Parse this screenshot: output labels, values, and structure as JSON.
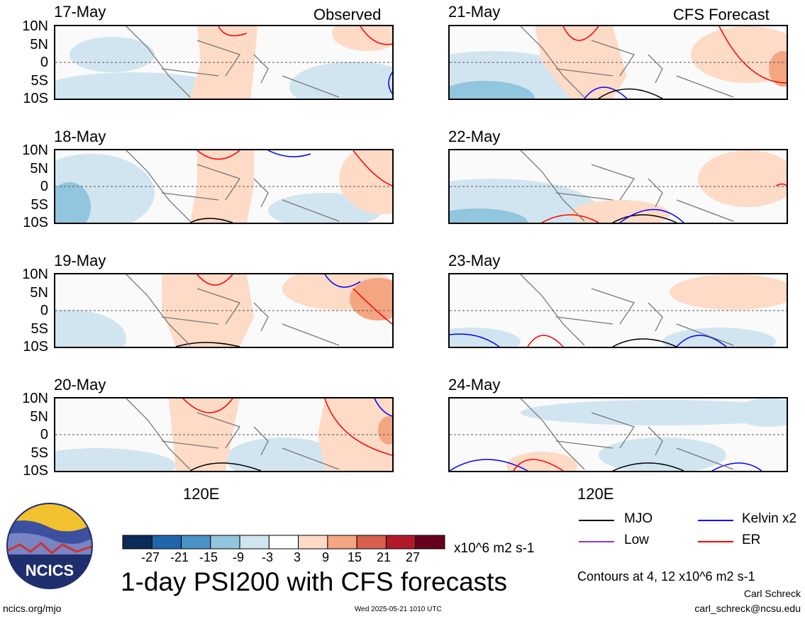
{
  "header": {
    "left_tag": "Observed",
    "right_tag": "CFS Forecast"
  },
  "lat_ticks": [
    "10N",
    "5N",
    "0",
    "5S",
    "10S"
  ],
  "lon_tick": "120E",
  "chart_data": {
    "type": "heatmap",
    "title": "1-day PSI200 with CFS forecasts",
    "variable": "PSI200",
    "units": "x10^6 m2 s-1",
    "lat_range": [
      "10S",
      "10N"
    ],
    "panels": [
      {
        "date": "17-May",
        "kind": "Observed"
      },
      {
        "date": "18-May",
        "kind": "Observed"
      },
      {
        "date": "19-May",
        "kind": "Observed"
      },
      {
        "date": "20-May",
        "kind": "Observed"
      },
      {
        "date": "21-May",
        "kind": "CFS Forecast"
      },
      {
        "date": "22-May",
        "kind": "CFS Forecast"
      },
      {
        "date": "23-May",
        "kind": "CFS Forecast"
      },
      {
        "date": "24-May",
        "kind": "CFS Forecast"
      }
    ],
    "colorbar": {
      "labels": [
        "-27",
        "-21",
        "-15",
        "-9",
        "-3",
        "3",
        "9",
        "15",
        "21",
        "27"
      ],
      "colors": [
        "#0b2c57",
        "#2166ac",
        "#4a93c6",
        "#92c5de",
        "#d1e5f0",
        "#ffffff",
        "#fddbc7",
        "#f4a582",
        "#d6604d",
        "#b2182b",
        "#67001f"
      ]
    },
    "legend": [
      {
        "label": "MJO",
        "color": "#000000"
      },
      {
        "label": "Kelvin x2",
        "color": "#0000ff"
      },
      {
        "label": "Low",
        "color": "#9933cc"
      },
      {
        "label": "ER",
        "color": "#ff0000"
      }
    ],
    "contour_note": "Contours at 4, 12 x10^6 m2 s-1"
  },
  "footer": {
    "author": "Carl Schreck",
    "email": "carl_schreck@ncsu.edu",
    "site": "ncics.org/mjo",
    "timestamp": "Wed 2025-05-21 1010 UTC",
    "logo_text": "NCICS"
  }
}
